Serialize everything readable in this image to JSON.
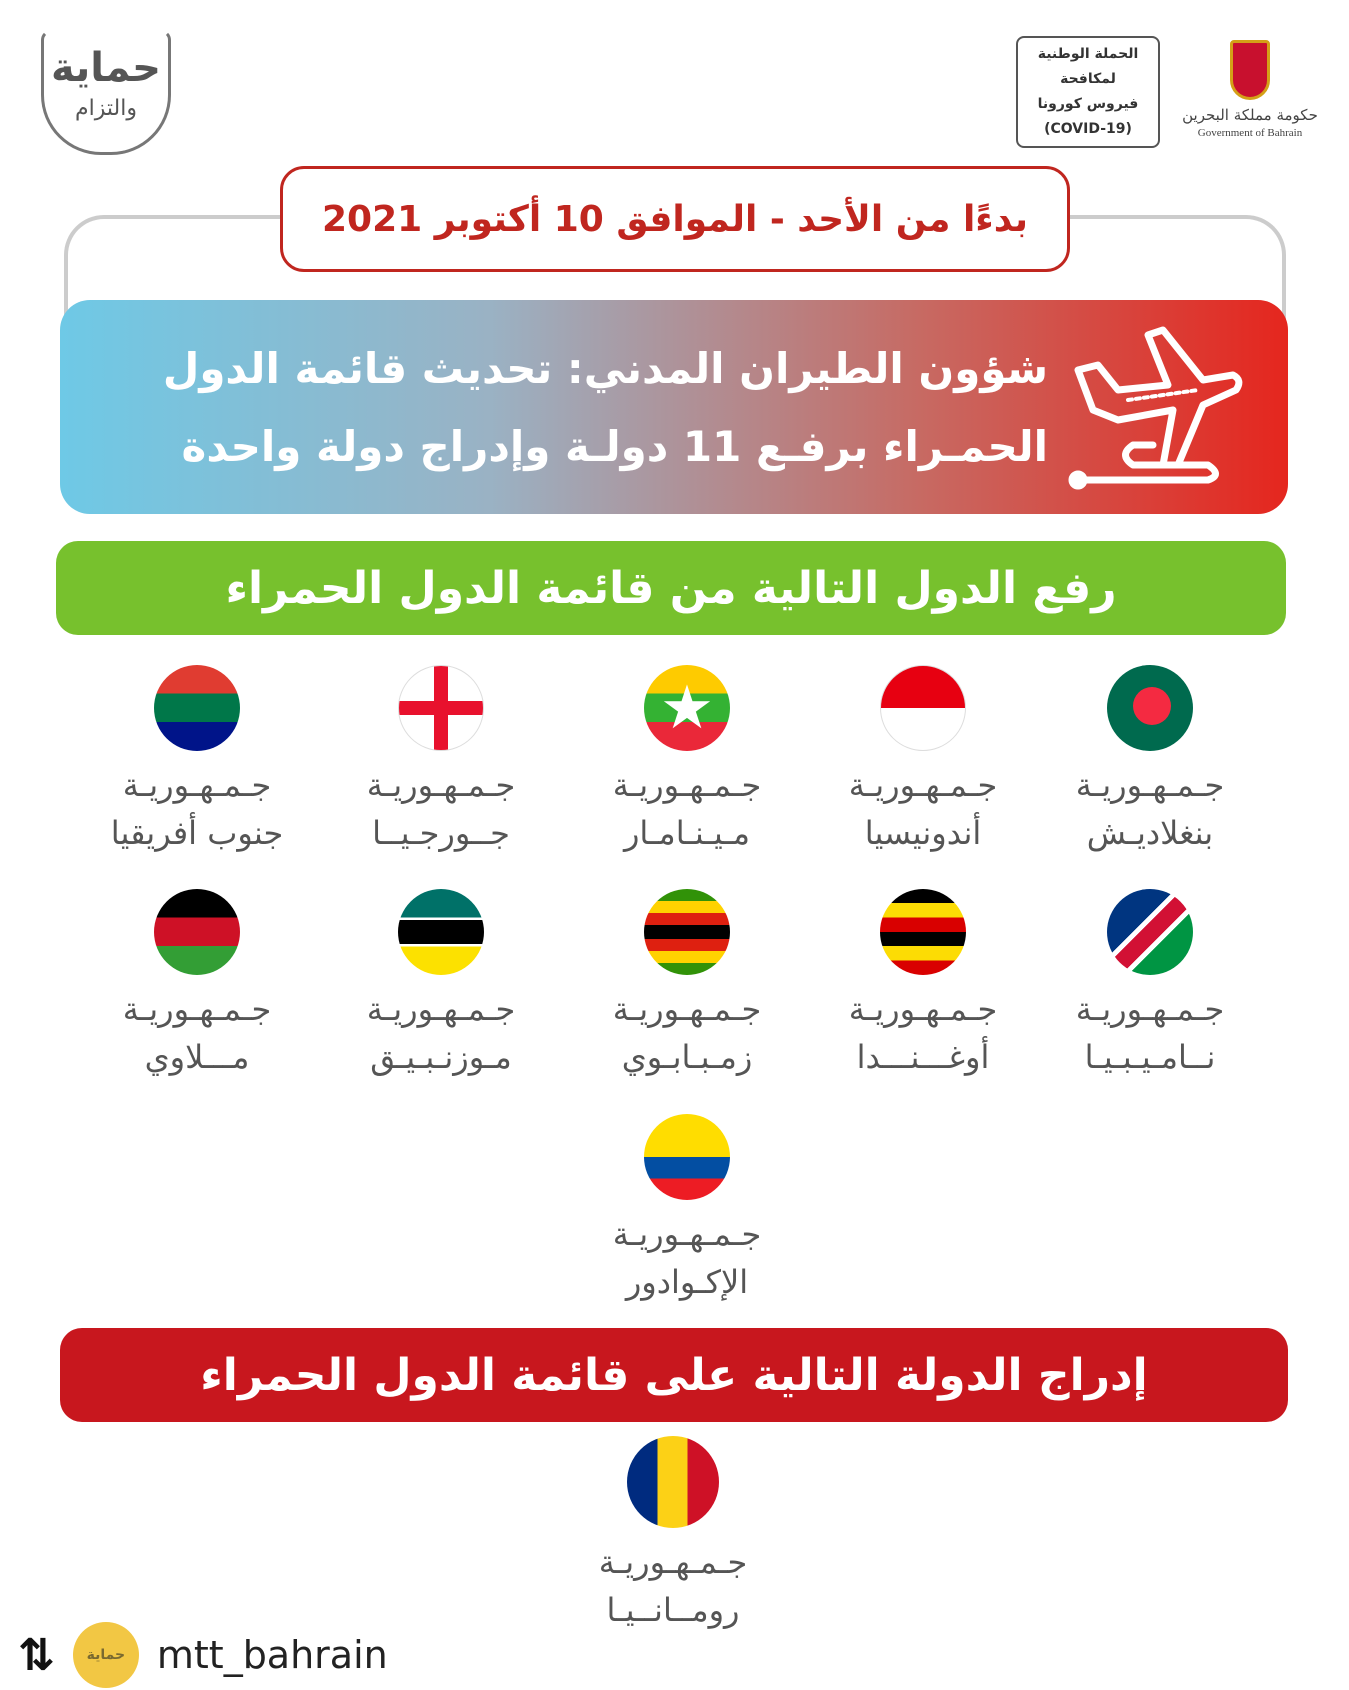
{
  "header": {
    "brand_line1": "حماية",
    "brand_line2": "والتزام",
    "campaign": [
      "الحملة الوطنية",
      "لمكافحة",
      "فيروس كورونا",
      "(COVID-19)"
    ],
    "gov_ar": "حكومة مملكة البحرين",
    "gov_en": "Government of Bahrain"
  },
  "date_label": "بدءًا من الأحد - الموافق 10 أكتوبر 2021",
  "banner": {
    "line1": "شؤون الطيران المدني: تحديث قائمة الدول",
    "line2": "الحمـراء برفـع 11 دولـة وإدراج دولة واحدة",
    "icon": "airplane-landing-icon"
  },
  "lift_title": "رفع الدول التالية من قائمة الدول الحمراء",
  "lifted": [
    {
      "l1": "جـمـهـوريـة",
      "l2": "بنغلاديـش",
      "flag": "bangladesh"
    },
    {
      "l1": "جـمـهـوريـة",
      "l2": "أندونيسيا",
      "flag": "indonesia"
    },
    {
      "l1": "جـمـهـوريـة",
      "l2": "مـيـنـامـار",
      "flag": "myanmar"
    },
    {
      "l1": "جـمـهـوريـة",
      "l2": "جــورجـيــا",
      "flag": "georgia"
    },
    {
      "l1": "جـمـهـوريـة",
      "l2": "جنوب أفريقيا",
      "flag": "south-africa"
    },
    {
      "l1": "جـمـهـوريـة",
      "l2": "نــامـيـبـيـا",
      "flag": "namibia"
    },
    {
      "l1": "جـمـهـوريـة",
      "l2": "أوغـــنـــدا",
      "flag": "uganda"
    },
    {
      "l1": "جـمـهـوريـة",
      "l2": "زمـبـابـوي",
      "flag": "zimbabwe"
    },
    {
      "l1": "جـمـهـوريـة",
      "l2": "مـوزنـبـيـق",
      "flag": "mozambique"
    },
    {
      "l1": "جـمـهـوريـة",
      "l2": "مـــلاوي",
      "flag": "malawi"
    },
    {
      "l1": "جـمـهـوريـة",
      "l2": "الإكـوادور",
      "flag": "ecuador"
    }
  ],
  "add_title": "إدراج الدولة التالية على قائمة الدول الحمراء",
  "added": [
    {
      "l1": "جـمـهـوريـة",
      "l2": "رومــانــيـا",
      "flag": "romania"
    }
  ],
  "footer": {
    "username": "mtt_bahrain",
    "avatar_text": "حماية"
  }
}
